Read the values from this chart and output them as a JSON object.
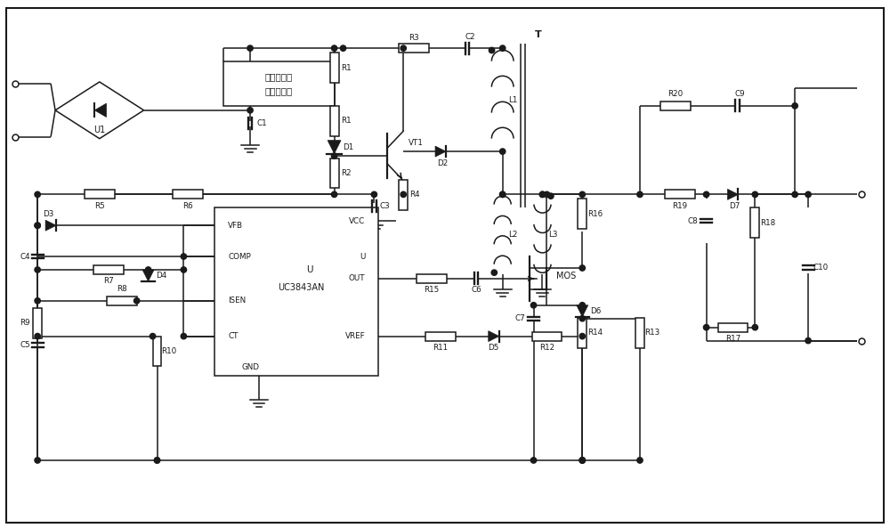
{
  "bg_color": "#ffffff",
  "line_color": "#1a1a1a",
  "text_color": "#1a1a1a",
  "figsize": [
    10.0,
    5.93
  ],
  "dpi": 100,
  "xlim": [
    0,
    100
  ],
  "ylim": [
    0,
    59.3
  ]
}
